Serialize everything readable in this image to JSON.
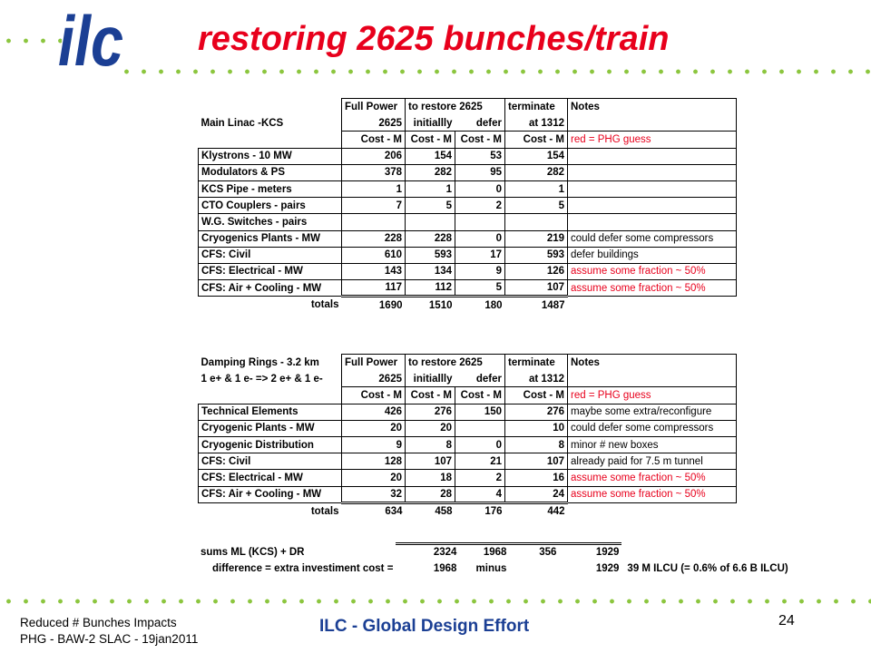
{
  "slide": {
    "logo_text": "ilc",
    "title": "restoring 2625 bunches/train",
    "footer_line1": "Reduced # Bunches Impacts",
    "footer_line2": "PHG - BAW-2 SLAC - 19jan2011",
    "footer_center": "ILC - Global Design Effort",
    "page_number": "24"
  },
  "colors": {
    "title": "#e8001c",
    "footer_center": "#1b3f94",
    "dots": "#8cc63f",
    "logo": "#1b3f94",
    "note_red": "#e8001c"
  },
  "main_linac": {
    "header_row1": [
      "",
      "Full Power",
      "to restore 2625",
      "",
      "terminate",
      "Notes"
    ],
    "header_row2": [
      "Main Linac -KCS",
      "2625",
      "initiallly",
      "defer",
      "at 1312",
      ""
    ],
    "header_row3": [
      "",
      "Cost - M",
      "Cost - M",
      "Cost - M",
      "Cost - M",
      "red = PHG guess"
    ],
    "rows": [
      [
        "Klystrons - 10 MW",
        "206",
        "154",
        "53",
        "154",
        ""
      ],
      [
        "Modulators & PS",
        "378",
        "282",
        "95",
        "282",
        ""
      ],
      [
        "KCS Pipe - meters",
        "1",
        "1",
        "0",
        "1",
        ""
      ],
      [
        "CTO Couplers - pairs",
        "7",
        "5",
        "2",
        "5",
        ""
      ],
      [
        "W.G. Switches - pairs",
        "",
        "",
        "",
        "",
        ""
      ],
      [
        "Cryogenics Plants - MW",
        "228",
        "228",
        "0",
        "219",
        "could defer some compressors"
      ],
      [
        "CFS: Civil",
        "610",
        "593",
        "17",
        "593",
        "defer buildings"
      ],
      [
        "CFS: Electrical - MW",
        "143",
        "134",
        "9",
        "126",
        "assume some fraction ~ 50%"
      ],
      [
        "CFS: Air + Cooling - MW",
        "117",
        "112",
        "5",
        "107",
        "assume some fraction ~ 50%"
      ]
    ],
    "red_notes": [
      false,
      false,
      false,
      false,
      false,
      false,
      false,
      true,
      true
    ],
    "totals": [
      "totals",
      "1690",
      "1510",
      "180",
      "1487",
      ""
    ]
  },
  "damping_rings": {
    "header_row1": [
      "Damping Rings - 3.2 km",
      "Full Power",
      "to restore 2625",
      "",
      "terminate",
      "Notes"
    ],
    "header_row2": [
      "1 e+ & 1 e- => 2 e+ & 1 e-",
      "2625",
      "initiallly",
      "defer",
      "at 1312",
      ""
    ],
    "header_row3": [
      "",
      "Cost - M",
      "Cost - M",
      "Cost - M",
      "Cost - M",
      "red = PHG guess"
    ],
    "rows": [
      [
        "Technical Elements",
        "426",
        "276",
        "150",
        "276",
        "maybe some extra/reconfigure"
      ],
      [
        "Cryogenic Plants - MW",
        "20",
        "20",
        "",
        "10",
        "could defer some compressors"
      ],
      [
        "Cryogenic Distribution",
        "9",
        "8",
        "0",
        "8",
        "minor # new boxes"
      ],
      [
        "CFS: Civil",
        "128",
        "107",
        "21",
        "107",
        "already paid for 7.5 m tunnel"
      ],
      [
        "CFS: Electrical - MW",
        "20",
        "18",
        "2",
        "16",
        "assume some fraction ~ 50%"
      ],
      [
        "CFS: Air + Cooling - MW",
        "32",
        "28",
        "4",
        "24",
        "assume some fraction ~ 50%"
      ]
    ],
    "red_notes": [
      false,
      false,
      false,
      false,
      true,
      true
    ],
    "totals": [
      "totals",
      "634",
      "458",
      "176",
      "442",
      ""
    ]
  },
  "summary": {
    "row1": [
      "sums ML (KCS) + DR",
      "2324",
      "1968",
      "356",
      "1929",
      ""
    ],
    "row2": [
      "difference = extra investiment cost =",
      "1968",
      "minus",
      "",
      "1929",
      "39 M ILCU (= 0.6% of 6.6 B ILCU)"
    ]
  }
}
